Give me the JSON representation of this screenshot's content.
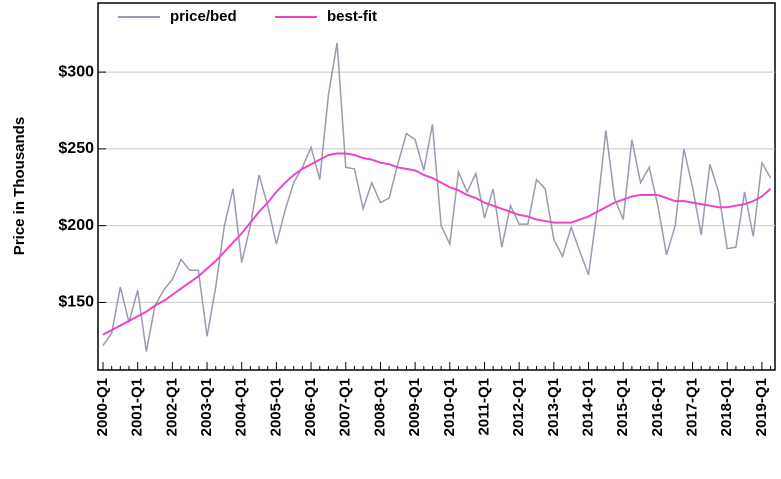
{
  "chart_data": {
    "type": "line",
    "ylabel": "Price in Thousands",
    "categories": [
      "2000-Q1",
      null,
      null,
      null,
      "2001-Q1",
      null,
      null,
      null,
      "2002-Q1",
      null,
      null,
      null,
      "2003-Q1",
      null,
      null,
      null,
      "2004-Q1",
      null,
      null,
      null,
      "2005-Q1",
      null,
      null,
      null,
      "2006-Q1",
      null,
      null,
      null,
      "2007-Q1",
      null,
      null,
      null,
      "2008-Q1",
      null,
      null,
      null,
      "2009-Q1",
      null,
      null,
      null,
      "2010-Q1",
      null,
      null,
      null,
      "2011-Q1",
      null,
      null,
      null,
      "2012-Q1",
      null,
      null,
      null,
      "2013-Q1",
      null,
      null,
      null,
      "2014-Q1",
      null,
      null,
      null,
      "2015-Q1",
      null,
      null,
      null,
      "2016-Q1",
      null,
      null,
      null,
      "2017-Q1",
      null,
      null,
      null,
      "2018-Q1",
      null,
      null,
      null,
      "2019-Q1",
      null
    ],
    "series": [
      {
        "name": "price/bed",
        "color": "#9a9ab0",
        "values": [
          122,
          130,
          160,
          137,
          158,
          118,
          148,
          158,
          165,
          178,
          171,
          171,
          128,
          160,
          200,
          224,
          176,
          200,
          233,
          213,
          188,
          210,
          228,
          238,
          251,
          230,
          285,
          319,
          238,
          237,
          211,
          228,
          215,
          218,
          240,
          260,
          256,
          236,
          266,
          200,
          188,
          235,
          222,
          234,
          205,
          224,
          186,
          213,
          201,
          201,
          230,
          224,
          191,
          180,
          199,
          183,
          168,
          210,
          262,
          218,
          204,
          256,
          228,
          238,
          213,
          181,
          200,
          250,
          225,
          194,
          240,
          222,
          185,
          186,
          222,
          193,
          241,
          231
        ]
      },
      {
        "name": "best-fit",
        "color": "#ee44cc",
        "values": [
          129,
          132,
          135,
          138,
          141,
          144,
          148,
          151,
          155,
          159,
          163,
          167,
          172,
          177,
          183,
          189,
          195,
          202,
          209,
          215,
          222,
          228,
          233,
          237,
          240,
          243,
          246,
          247,
          247,
          246,
          244,
          243,
          241,
          240,
          238,
          237,
          236,
          233,
          231,
          228,
          225,
          223,
          220,
          218,
          215,
          213,
          211,
          209,
          207,
          206,
          204,
          203,
          202,
          202,
          202,
          204,
          206,
          209,
          212,
          215,
          217,
          219,
          220,
          220,
          220,
          218,
          216,
          216,
          215,
          214,
          213,
          212,
          212,
          213,
          214,
          216,
          219,
          224
        ]
      }
    ],
    "ylim": [
      106,
      345
    ],
    "yticks": [
      {
        "value": 150,
        "label": "$150"
      },
      {
        "value": 200,
        "label": "$200"
      },
      {
        "value": 250,
        "label": "$250"
      },
      {
        "value": 300,
        "label": "$300"
      }
    ],
    "grid": true
  }
}
